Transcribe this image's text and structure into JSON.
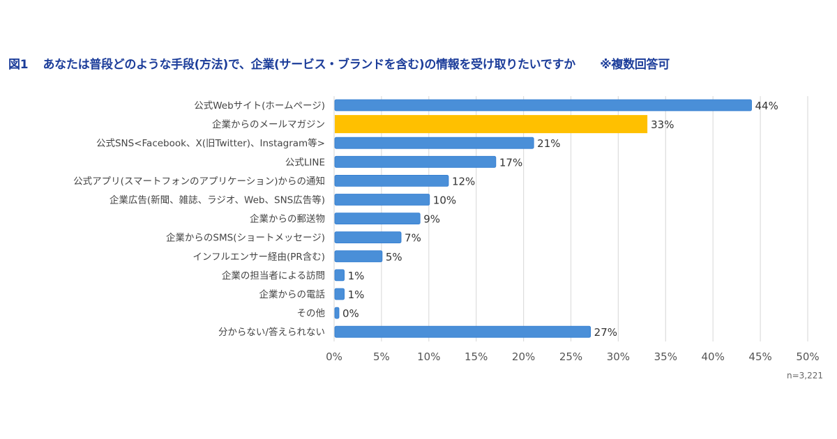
{
  "title": {
    "figure": "図1",
    "question": "あなたは普段どのような手段(方法)で、企業(サービス・ブランドを含む)の情報を受け取りたいですか",
    "note": "※複数回答可"
  },
  "colors": {
    "bar": "#4a8fd8",
    "highlight": "#ffc000",
    "grid": "#dddddd",
    "title": "#1c3d9a"
  },
  "sample_size": "n=3,221",
  "chart_data": {
    "type": "bar",
    "orientation": "horizontal",
    "title": "図1 あなたは普段どのような手段(方法)で、企業(サービス・ブランドを含む)の情報を受け取りたいですか ※複数回答可",
    "xlabel": "",
    "ylabel": "",
    "xlim": [
      0,
      50
    ],
    "grid": true,
    "categories": [
      "公式Webサイト(ホームページ)",
      "企業からのメールマガジン",
      "公式SNS<Facebook、X(旧Twitter)、Instagram等>",
      "公式LINE",
      "公式アプリ(スマートフォンのアプリケーション)からの通知",
      "企業広告(新聞、雑誌、ラジオ、Web、SNS広告等)",
      "企業からの郵送物",
      "企業からのSMS(ショートメッセージ)",
      "インフルエンサー経由(PR含む)",
      "企業の担当者による訪問",
      "企業からの電話",
      "その他",
      "分からない/答えられない"
    ],
    "values": [
      44,
      33,
      21,
      17,
      12,
      10,
      9,
      7,
      5,
      1,
      1,
      0,
      27
    ],
    "value_labels": [
      "44%",
      "33%",
      "21%",
      "17%",
      "12%",
      "10%",
      "9%",
      "7%",
      "5%",
      "1%",
      "1%",
      "0%",
      "27%"
    ],
    "highlight_index": 1,
    "ticks": [
      0,
      5,
      10,
      15,
      20,
      25,
      30,
      35,
      40,
      45,
      50
    ],
    "tick_labels": [
      "0%",
      "5%",
      "10%",
      "15%",
      "20%",
      "25%",
      "30%",
      "35%",
      "40%",
      "45%",
      "50%"
    ],
    "legend": "none"
  }
}
